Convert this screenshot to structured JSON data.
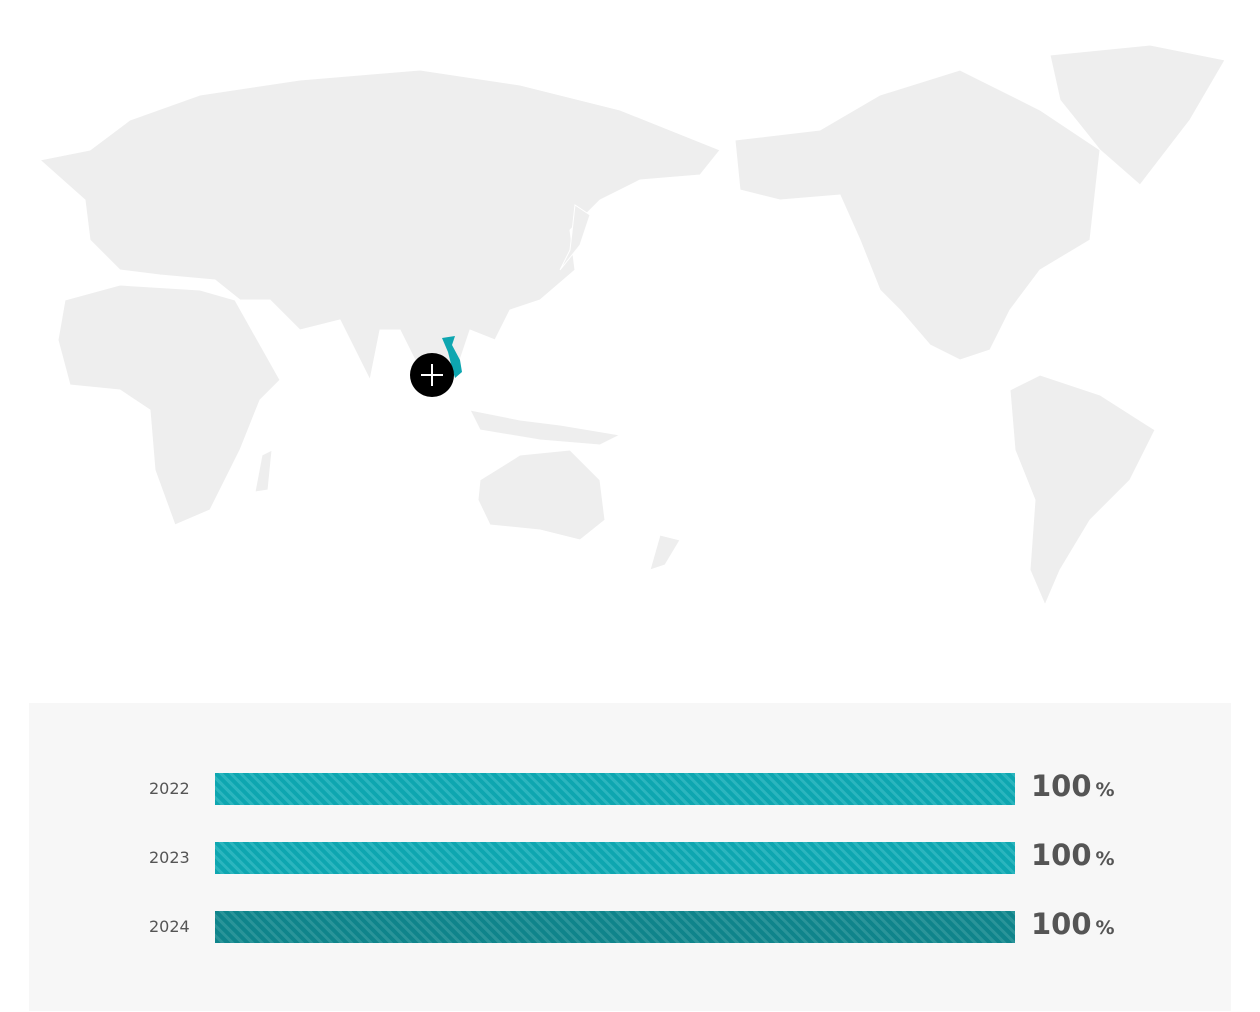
{
  "map": {
    "highlighted_country": "Vietnam",
    "highlight_color": "#0ea6b0",
    "land_color": "#eeeeee",
    "marker_icon": "plus-icon"
  },
  "chart_data": {
    "type": "bar",
    "orientation": "horizontal",
    "categories": [
      "2022",
      "2023",
      "2024"
    ],
    "values": [
      100,
      100,
      100
    ],
    "unit": "%",
    "xlim": [
      0,
      100
    ],
    "colors": [
      "#0ea6b0",
      "#0ea6b0",
      "#0f848b"
    ],
    "labels": [
      {
        "num": "100",
        "unit": "%"
      },
      {
        "num": "100",
        "unit": "%"
      },
      {
        "num": "100",
        "unit": "%"
      }
    ]
  }
}
